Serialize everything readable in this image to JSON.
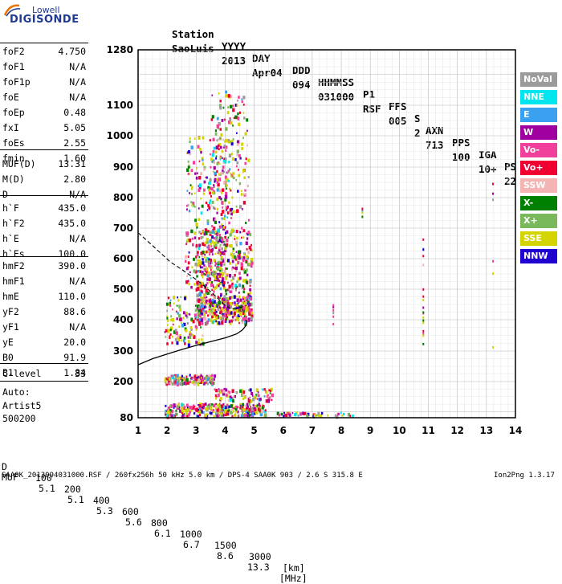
{
  "logo": {
    "top": "Lowell",
    "bottom": "DIGISONDE"
  },
  "header": {
    "line1": [
      "Station",
      "YYYY",
      "DAY",
      "DDD",
      "HHMMSS",
      "P1",
      "FFS",
      "S",
      "AXN",
      "PPS",
      "IGA",
      "PS"
    ],
    "line2": [
      "SaoLuis",
      "2013",
      "Apr04",
      "094",
      "031000",
      "RSF",
      "005",
      "2",
      "713",
      "100",
      "10+",
      "22"
    ]
  },
  "params": [
    {
      "name": "foF2",
      "value": "4.750"
    },
    {
      "name": "foF1",
      "value": "N/A"
    },
    {
      "name": "foF1p",
      "value": "N/A"
    },
    {
      "name": "foE",
      "value": "N/A"
    },
    {
      "name": "foEp",
      "value": "0.48"
    },
    {
      "name": "fxI",
      "value": "5.05"
    },
    {
      "name": "foEs",
      "value": "2.55"
    },
    {
      "name": "fmin",
      "value": "1.60"
    },
    {
      "name": "MUF(D)",
      "value": "13.31"
    },
    {
      "name": "M(D)",
      "value": "2.80"
    },
    {
      "name": "D",
      "value": "N/A"
    },
    {
      "name": "h`F",
      "value": "435.0"
    },
    {
      "name": "h`F2",
      "value": "435.0"
    },
    {
      "name": "h`E",
      "value": "N/A"
    },
    {
      "name": "h`Es",
      "value": "100.0"
    },
    {
      "name": "hmF2",
      "value": "390.0"
    },
    {
      "name": "hmF1",
      "value": "N/A"
    },
    {
      "name": "hmE",
      "value": "110.0"
    },
    {
      "name": "yF2",
      "value": "88.6"
    },
    {
      "name": "yF1",
      "value": "N/A"
    },
    {
      "name": "yE",
      "value": "20.0"
    },
    {
      "name": "B0",
      "value": "91.9"
    },
    {
      "name": "B1",
      "value": "1.84"
    },
    {
      "name": "C-level",
      "value": "33"
    }
  ],
  "auto": {
    "line1": "Auto:",
    "line2": "Artist5",
    "line3": "500200"
  },
  "muf_table": {
    "d_label": "D",
    "d_values": [
      "100",
      "200",
      "400",
      "600",
      "800",
      "1000",
      "1500",
      "3000"
    ],
    "d_unit": "[km]",
    "muf_label": "MUF",
    "muf_values": [
      "5.1",
      "5.1",
      "5.3",
      "5.6",
      "6.1",
      "6.7",
      "8.6",
      "13.3"
    ],
    "muf_unit": "[MHz]"
  },
  "footer": {
    "left": "SAA0K_2013094031000.RSF / 260fx256h 50 kHz 5.0 km / DPS-4 SAA0K 903 / 2.6 S 315.8 E",
    "right": "Ion2Png 1.3.17"
  },
  "legend": [
    {
      "label": "NoVal",
      "color": "#9b9b9b"
    },
    {
      "label": "NNE",
      "color": "#00e5ee"
    },
    {
      "label": "E",
      "color": "#3aa0f0"
    },
    {
      "label": "W",
      "color": "#a000a0"
    },
    {
      "label": "Vo-",
      "color": "#f0409c"
    },
    {
      "label": "Vo+",
      "color": "#f00030"
    },
    {
      "label": "SSW",
      "color": "#f4b4b4"
    },
    {
      "label": "X-",
      "color": "#008000"
    },
    {
      "label": "X+",
      "color": "#7ab85c"
    },
    {
      "label": "SSE",
      "color": "#d4d400"
    },
    {
      "label": "NNW",
      "color": "#2000d0"
    }
  ],
  "chart_data": {
    "type": "scatter",
    "x_ticks": [
      1,
      2,
      3,
      4,
      5,
      6,
      7,
      8,
      9,
      10,
      11,
      12,
      13,
      14
    ],
    "y_ticks": [
      80,
      200,
      300,
      400,
      500,
      600,
      700,
      800,
      900,
      1000,
      1100,
      1280
    ],
    "xlim": [
      1,
      14
    ],
    "ylim": [
      80,
      1280
    ],
    "grid": true,
    "profile_solid": [
      [
        1.0,
        255
      ],
      [
        1.5,
        275
      ],
      [
        2.0,
        290
      ],
      [
        2.5,
        305
      ],
      [
        3.0,
        318
      ],
      [
        3.5,
        330
      ],
      [
        4.0,
        342
      ],
      [
        4.4,
        355
      ],
      [
        4.6,
        368
      ],
      [
        4.72,
        382
      ],
      [
        4.75,
        392
      ],
      [
        4.7,
        400
      ]
    ],
    "profile_dashed": [
      [
        1.0,
        685
      ],
      [
        1.3,
        660
      ],
      [
        1.7,
        625
      ],
      [
        2.1,
        590
      ],
      [
        2.5,
        565
      ],
      [
        2.8,
        545
      ],
      [
        3.1,
        525
      ],
      [
        3.4,
        500
      ],
      [
        3.7,
        475
      ],
      [
        3.9,
        455
      ],
      [
        4.1,
        440
      ],
      [
        4.3,
        435
      ],
      [
        4.5,
        440
      ],
      [
        4.7,
        445
      ]
    ],
    "traces": [
      {
        "f_range": [
          3.0,
          4.9
        ],
        "h_range": [
          390,
          480
        ],
        "count": 260
      },
      {
        "f_range": [
          3.0,
          4.9
        ],
        "h_range": [
          420,
          700
        ],
        "count": 420
      },
      {
        "f_range": [
          2.6,
          4.2
        ],
        "h_range": [
          500,
          1000
        ],
        "count": 320
      },
      {
        "f_range": [
          3.5,
          4.8
        ],
        "h_range": [
          700,
          1150
        ],
        "count": 160
      },
      {
        "f_range": [
          1.9,
          3.2
        ],
        "h_range": [
          320,
          480
        ],
        "count": 120
      },
      {
        "f_range": [
          1.9,
          3.6
        ],
        "h_range": [
          195,
          225
        ],
        "count": 160
      },
      {
        "f_range": [
          1.9,
          5.4
        ],
        "h_range": [
          88,
          130
        ],
        "count": 320
      },
      {
        "f_range": [
          3.6,
          5.6
        ],
        "h_range": [
          140,
          180
        ],
        "count": 80
      },
      {
        "f_range": [
          5.7,
          8.4
        ],
        "h_range": [
          88,
          100
        ],
        "count": 45
      }
    ],
    "columns": [
      {
        "f": 7.7,
        "h_range": [
          380,
          460
        ],
        "count": 6
      },
      {
        "f": 8.7,
        "h_range": [
          740,
          800
        ],
        "count": 4
      },
      {
        "f": 10.8,
        "h_range": [
          230,
          720
        ],
        "count": 18
      },
      {
        "f": 13.2,
        "h_range": [
          300,
          860
        ],
        "count": 6
      }
    ]
  }
}
